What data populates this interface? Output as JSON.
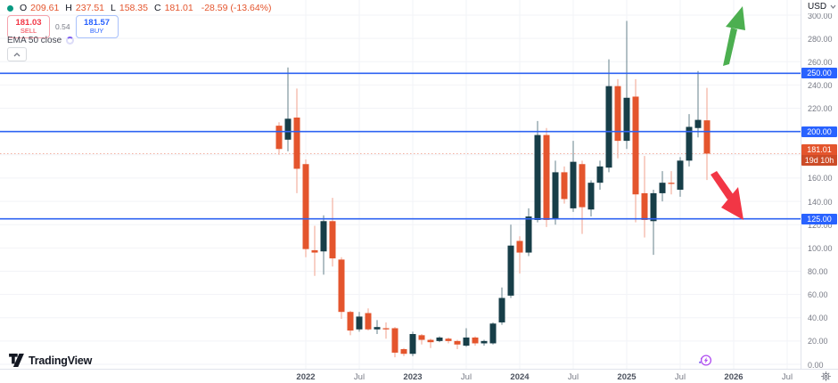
{
  "ohlc": {
    "open_label": "O",
    "open": "209.61",
    "high_label": "H",
    "high": "237.51",
    "low_label": "L",
    "low": "158.35",
    "close_label": "C",
    "close": "181.01",
    "change": "-28.59 (-13.64%)"
  },
  "trade": {
    "sell_price": "181.03",
    "sell_label": "SELL",
    "spread": "0.54",
    "buy_price": "181.57",
    "buy_label": "BUY"
  },
  "indicator": {
    "name": "EMA 50 close"
  },
  "price_axis": {
    "currency": "USD",
    "labels": [
      "300.00",
      "280.00",
      "260.00",
      "240.00",
      "220.00",
      "160.00",
      "140.00",
      "120.00",
      "100.00",
      "80.00",
      "60.00",
      "40.00",
      "20.00",
      "0.00"
    ],
    "level_labels": [
      "250.00",
      "200.00",
      "125.00"
    ],
    "current_label": {
      "price": "181.01",
      "countdown": "19d 10h"
    }
  },
  "time_axis": {
    "ticks": [
      {
        "label": "2022",
        "month": "2022-01"
      },
      {
        "label": "Jul",
        "month": "2022-07"
      },
      {
        "label": "2023",
        "month": "2023-01"
      },
      {
        "label": "Jul",
        "month": "2023-07"
      },
      {
        "label": "2024",
        "month": "2024-01"
      },
      {
        "label": "Jul",
        "month": "2024-07"
      },
      {
        "label": "2025",
        "month": "2025-01"
      },
      {
        "label": "Jul",
        "month": "2025-07"
      },
      {
        "label": "2026",
        "month": "2026-01"
      },
      {
        "label": "Jul",
        "month": "2026-07"
      }
    ]
  },
  "chart_data": {
    "type": "candlestick",
    "timeframe": "monthly",
    "ylim": [
      0,
      300
    ],
    "grid_step": 20,
    "start_month": "2021-10",
    "horizontal_lines": [
      250,
      200,
      125
    ],
    "current_price": 181.01,
    "candles": [
      [
        "2021-10",
        205,
        208,
        180,
        185
      ],
      [
        "2021-11",
        193,
        255,
        183,
        211
      ],
      [
        "2021-12",
        212,
        237,
        147,
        168
      ],
      [
        "2022-01",
        172,
        176,
        92,
        99
      ],
      [
        "2022-02",
        98,
        119,
        76,
        96
      ],
      [
        "2022-03",
        97,
        128,
        77,
        123
      ],
      [
        "2022-04",
        123,
        143,
        84,
        91
      ],
      [
        "2022-05",
        90,
        92,
        39,
        45
      ],
      [
        "2022-06",
        45,
        46,
        25,
        29
      ],
      [
        "2022-07",
        30,
        45,
        28,
        41
      ],
      [
        "2022-08",
        44,
        48,
        29,
        30
      ],
      [
        "2022-09",
        30,
        38,
        26,
        32
      ],
      [
        "2022-10",
        31,
        36,
        22,
        30
      ],
      [
        "2022-11",
        31,
        32,
        6,
        10
      ],
      [
        "2022-12",
        13,
        14,
        7,
        9
      ],
      [
        "2023-01",
        9,
        28,
        7,
        26
      ],
      [
        "2023-02",
        25,
        26,
        17,
        21
      ],
      [
        "2023-03",
        21,
        22,
        14,
        19
      ],
      [
        "2023-04",
        20,
        24,
        19,
        23
      ],
      [
        "2023-05",
        22,
        23,
        18,
        20
      ],
      [
        "2023-06",
        20,
        21,
        13,
        17
      ],
      [
        "2023-07",
        16,
        31,
        15,
        23
      ],
      [
        "2023-08",
        23,
        24,
        16,
        18
      ],
      [
        "2023-09",
        18,
        21,
        16,
        20
      ],
      [
        "2023-10",
        18,
        36,
        17,
        35
      ],
      [
        "2023-11",
        36,
        66,
        34,
        57
      ],
      [
        "2023-12",
        59,
        120,
        57,
        102
      ],
      [
        "2024-01",
        106,
        110,
        78,
        96
      ],
      [
        "2024-02",
        96,
        134,
        93,
        127
      ],
      [
        "2024-03",
        124,
        209,
        122,
        197
      ],
      [
        "2024-04",
        197,
        203,
        118,
        124
      ],
      [
        "2024-05",
        125,
        175,
        120,
        165
      ],
      [
        "2024-06",
        165,
        170,
        138,
        142
      ],
      [
        "2024-07",
        134,
        192,
        131,
        174
      ],
      [
        "2024-08",
        172,
        175,
        112,
        135
      ],
      [
        "2024-09",
        133,
        158,
        127,
        156
      ],
      [
        "2024-10",
        156,
        175,
        150,
        170
      ],
      [
        "2024-11",
        169,
        262,
        165,
        239
      ],
      [
        "2024-12",
        239,
        245,
        177,
        192
      ],
      [
        "2025-01",
        192,
        295,
        185,
        229
      ],
      [
        "2025-02",
        230,
        245,
        122,
        146
      ],
      [
        "2025-03",
        147,
        179,
        109,
        124
      ],
      [
        "2025-04",
        123,
        150,
        94,
        147
      ],
      [
        "2025-05",
        147,
        166,
        140,
        156
      ],
      [
        "2025-06",
        156,
        166,
        146,
        155
      ],
      [
        "2025-07",
        150,
        178,
        144,
        175
      ],
      [
        "2025-08",
        175,
        215,
        170,
        204
      ],
      [
        "2025-09",
        203,
        252,
        195,
        210
      ],
      [
        "2025-10",
        209.61,
        237.51,
        158.35,
        181.01
      ]
    ]
  },
  "colors": {
    "up_body": "#173e48",
    "up_wick": "#64808b",
    "down_body": "#e4552d",
    "down_wick": "#f2a28e",
    "level_line": "#2e63f2",
    "level_label_bg": "#2962ff",
    "current_line": "#f3b1a2",
    "current_label_bg": "#e4552d",
    "grid": "#f2f3f7"
  },
  "drawings": {
    "up_arrow_color": "#4caf50",
    "down_arrow_color": "#f23645"
  },
  "branding": {
    "name": "TradingView"
  }
}
